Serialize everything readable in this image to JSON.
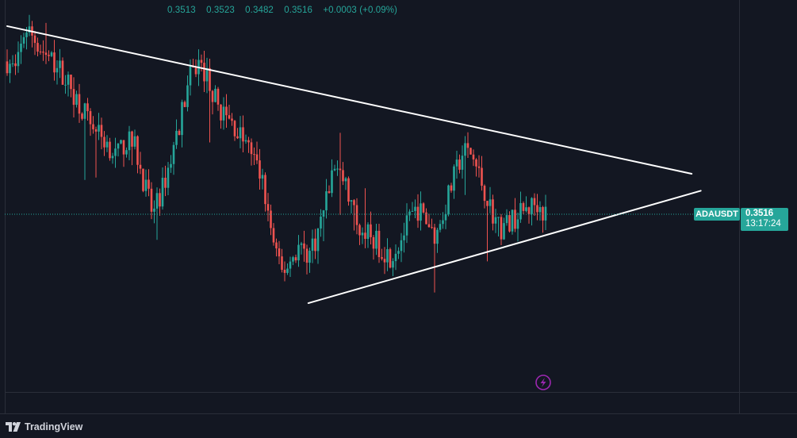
{
  "header": {
    "ohlc": [
      "0.3513",
      "0.3523",
      "0.3482",
      "0.3516",
      "+0.0003 (+0.09%)"
    ]
  },
  "price_scale": {
    "symbol": "ADAUSDT",
    "last_price": "0.3516",
    "countdown": "13:17:24"
  },
  "brand": {
    "name": "TradingView"
  },
  "colors": {
    "background": "#131722",
    "up": "#26a69a",
    "down": "#ef5350",
    "trendline": "#ffffff",
    "grid": "#2a2e39",
    "lightning": "#9c27b0"
  },
  "icons": {
    "lightning": "lightning-icon",
    "brand": "tradingview-logo-icon"
  },
  "chart_data": {
    "type": "candlestick",
    "symbol": "ADAUSDT",
    "last": 0.3516,
    "ylim": [
      0.338,
      0.368
    ],
    "close_path": [
      0.3633,
      0.3625,
      0.366,
      0.365,
      0.364,
      0.3632,
      0.3625,
      0.3612,
      0.36,
      0.3588,
      0.3578,
      0.357,
      0.356,
      0.3572,
      0.3568,
      0.354,
      0.3515,
      0.3535,
      0.356,
      0.359,
      0.362,
      0.3632,
      0.362,
      0.36,
      0.359,
      0.3582,
      0.3572,
      0.356,
      0.354,
      0.35,
      0.347,
      0.348,
      0.3492,
      0.3485,
      0.35,
      0.353,
      0.3555,
      0.354,
      0.3515,
      0.3505,
      0.3498,
      0.349,
      0.3484,
      0.3495,
      0.351,
      0.352,
      0.351,
      0.35,
      0.3522,
      0.3545,
      0.3565,
      0.356,
      0.354,
      0.352,
      0.3505,
      0.351,
      0.3515,
      0.352,
      0.3525,
      0.3516
    ],
    "trendlines": [
      {
        "name": "descending-resistance",
        "from": [
          0,
          0.366
        ],
        "to": [
          75,
          0.3547
        ]
      },
      {
        "name": "ascending-support",
        "from": [
          33,
          0.3448
        ],
        "to": [
          76,
          0.3534
        ]
      }
    ]
  }
}
